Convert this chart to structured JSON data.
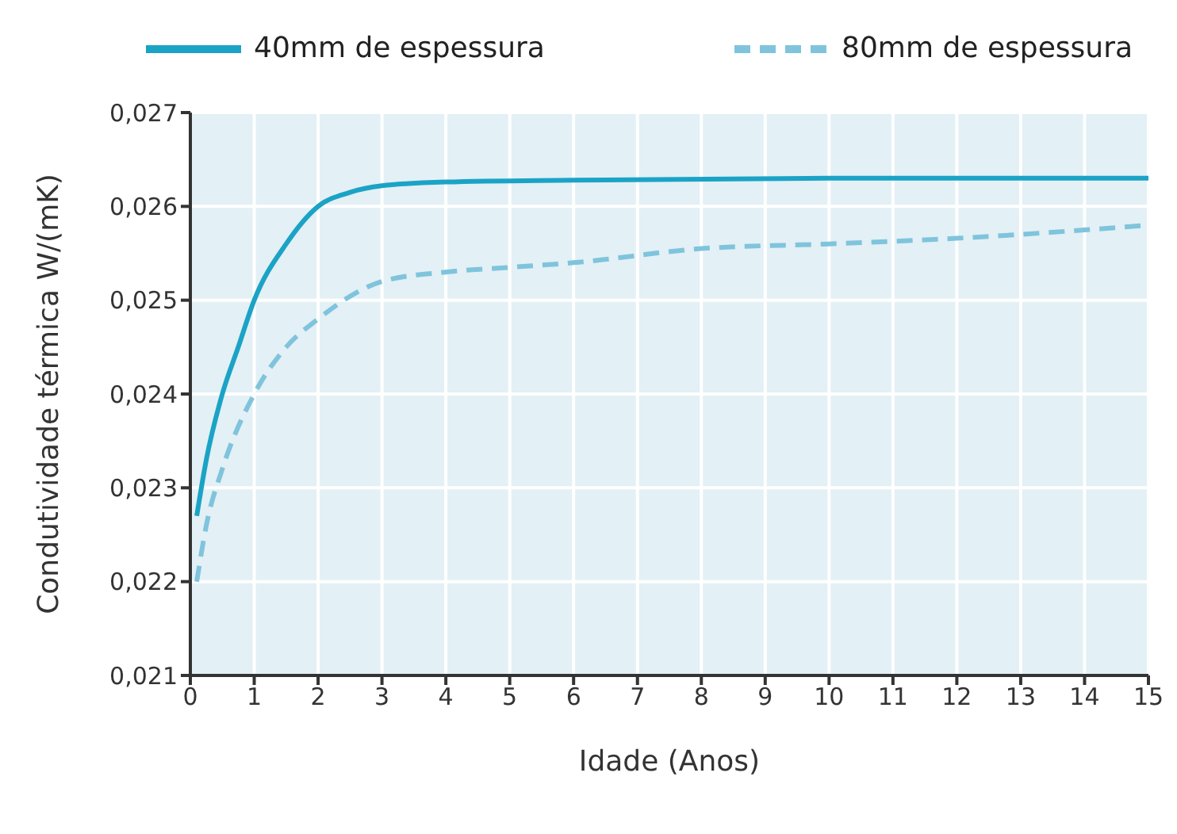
{
  "chart_data": {
    "type": "line",
    "xlabel": "Idade (Anos)",
    "ylabel": "Condutividade térmica W/(mK)",
    "xlim": [
      0,
      15
    ],
    "xticks": [
      0,
      1,
      2,
      3,
      4,
      5,
      6,
      7,
      8,
      9,
      10,
      11,
      12,
      13,
      14,
      15
    ],
    "ylim": [
      0.021,
      0.027
    ],
    "yticks": [
      {
        "value": 0.021,
        "label": "0,021"
      },
      {
        "value": 0.022,
        "label": "0,022"
      },
      {
        "value": 0.023,
        "label": "0,023"
      },
      {
        "value": 0.024,
        "label": "0,024"
      },
      {
        "value": 0.025,
        "label": "0,025"
      },
      {
        "value": 0.026,
        "label": "0,026"
      },
      {
        "value": 0.027,
        "label": "0,027"
      }
    ],
    "grid": true,
    "legend": "top",
    "marker": "none",
    "series": [
      {
        "name": "40mm de espessura",
        "color": "#1ba3c6",
        "line_style": "solid",
        "x": [
          0.1,
          0.25,
          0.5,
          0.75,
          1,
          1.5,
          2,
          2.5,
          3,
          4,
          6,
          10,
          15
        ],
        "values": [
          0.0227,
          0.0233,
          0.024,
          0.0245,
          0.025,
          0.0256,
          0.026,
          0.02615,
          0.02622,
          0.02626,
          0.02628,
          0.0263,
          0.0263
        ]
      },
      {
        "name": "80mm de espessura",
        "color": "#7fc4dc",
        "line_style": "dashed",
        "x": [
          0.1,
          0.25,
          0.5,
          1,
          1.5,
          2,
          3,
          4,
          5,
          6,
          8,
          10,
          12,
          15
        ],
        "values": [
          0.022,
          0.0226,
          0.0232,
          0.024,
          0.0245,
          0.0248,
          0.0252,
          0.0253,
          0.02535,
          0.0254,
          0.02555,
          0.0256,
          0.02566,
          0.0258
        ]
      }
    ]
  }
}
